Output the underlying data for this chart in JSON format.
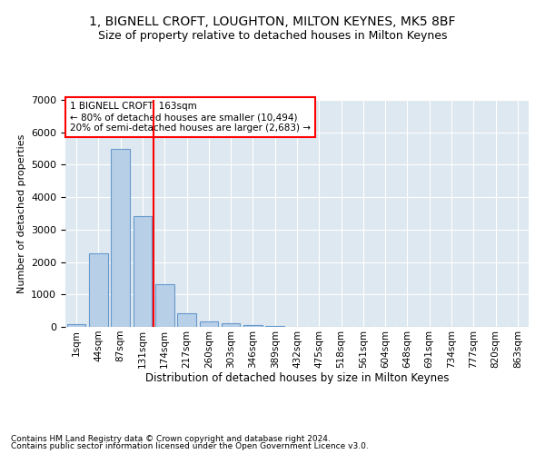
{
  "title": "1, BIGNELL CROFT, LOUGHTON, MILTON KEYNES, MK5 8BF",
  "subtitle": "Size of property relative to detached houses in Milton Keynes",
  "xlabel": "Distribution of detached houses by size in Milton Keynes",
  "ylabel": "Number of detached properties",
  "footer_line1": "Contains HM Land Registry data © Crown copyright and database right 2024.",
  "footer_line2": "Contains public sector information licensed under the Open Government Licence v3.0.",
  "bar_labels": [
    "1sqm",
    "44sqm",
    "87sqm",
    "131sqm",
    "174sqm",
    "217sqm",
    "260sqm",
    "303sqm",
    "346sqm",
    "389sqm",
    "432sqm",
    "475sqm",
    "518sqm",
    "561sqm",
    "604sqm",
    "648sqm",
    "691sqm",
    "734sqm",
    "777sqm",
    "820sqm",
    "863sqm"
  ],
  "bar_values": [
    75,
    2280,
    5480,
    3420,
    1310,
    420,
    175,
    100,
    60,
    30,
    0,
    0,
    0,
    0,
    0,
    0,
    0,
    0,
    0,
    0,
    0
  ],
  "bar_color": "#b8cfe8",
  "bar_edge_color": "#6699cc",
  "vline_color": "red",
  "annotation_title": "1 BIGNELL CROFT: 163sqm",
  "annotation_line1": "← 80% of detached houses are smaller (10,494)",
  "annotation_line2": "20% of semi-detached houses are larger (2,683) →",
  "annotation_box_color": "white",
  "annotation_box_edgecolor": "red",
  "ylim": [
    0,
    7000
  ],
  "background_color": "#dde8f0",
  "grid_color": "white",
  "title_fontsize": 10,
  "subtitle_fontsize": 9
}
